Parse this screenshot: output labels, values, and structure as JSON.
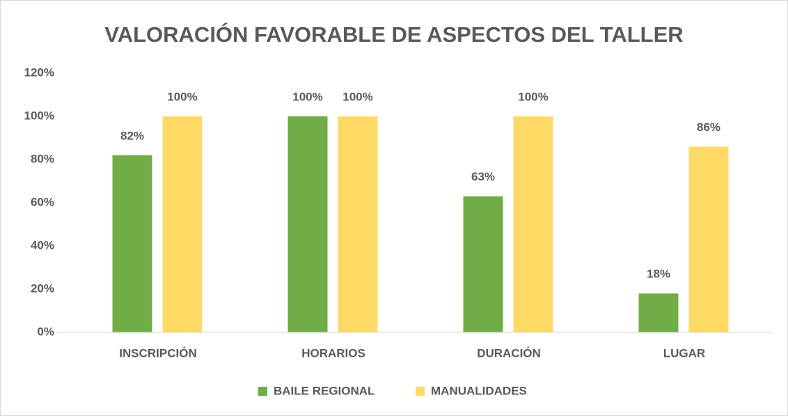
{
  "chart_data": {
    "type": "bar",
    "title": "VALORACIÓN FAVORABLE DE ASPECTOS DEL TALLER",
    "categories": [
      "INSCRIPCIÓN",
      "HORARIOS",
      "DURACIÓN",
      "LUGAR"
    ],
    "series": [
      {
        "name": "BAILE REGIONAL",
        "color": "#70ad47",
        "values": [
          82,
          100,
          63,
          18
        ],
        "value_labels": [
          "82%",
          "100%",
          "63%",
          "18%"
        ]
      },
      {
        "name": "MANUALIDADES",
        "color": "#ffd966",
        "values": [
          100,
          100,
          100,
          86
        ],
        "value_labels": [
          "100%",
          "100%",
          "100%",
          "86%"
        ]
      }
    ],
    "ylim": [
      0,
      120
    ],
    "yticks": [
      {
        "value": 0,
        "label": "0%"
      },
      {
        "value": 20,
        "label": "20%"
      },
      {
        "value": 40,
        "label": "40%"
      },
      {
        "value": 60,
        "label": "60%"
      },
      {
        "value": 80,
        "label": "80%"
      },
      {
        "value": 100,
        "label": "100%"
      },
      {
        "value": 120,
        "label": "120%"
      }
    ],
    "grid": false,
    "legend": "bottom"
  }
}
